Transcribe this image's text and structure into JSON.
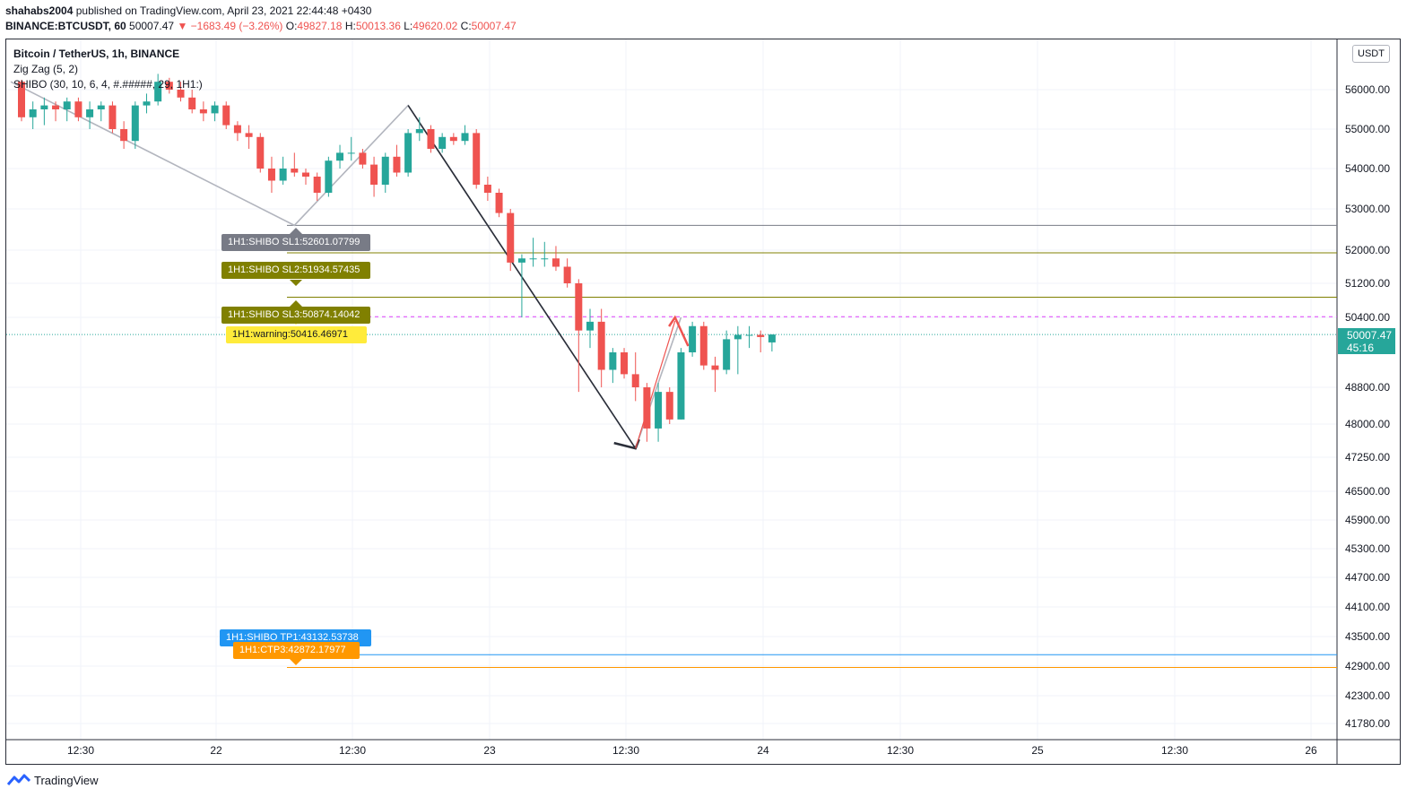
{
  "header": {
    "publisher": "shahabs2004",
    "published_text": "published on TradingView.com, April 23, 2021 22:44:48 +0430",
    "symbol": "BINANCE:BTCUSDT, 60",
    "last": "50007.47",
    "change": "▼ −1683.49 (−3.26%)",
    "o_label": "O:",
    "o_value": "49827.18",
    "h_label": "H:",
    "h_value": "50013.36",
    "l_label": "L:",
    "l_value": "49620.02",
    "c_label": "C:",
    "c_value": "50007.47"
  },
  "legend": {
    "title": "Bitcoin / TetherUS, 1h, BINANCE",
    "indicator1": "Zig Zag (5, 2)",
    "indicator2": "SHIBO (30, 10, 6, 4, #.#####, 29, 1H1:)"
  },
  "currency_button": "USDT",
  "price_tag": {
    "price": "50007.47",
    "countdown": "45:16"
  },
  "footer": {
    "brand": "TradingView"
  },
  "colors": {
    "up": "#26a69a",
    "down": "#ef5350",
    "sl1": "#787b86",
    "sl2": "#808000",
    "warning": "#ffeb3b",
    "tp1": "#2196f3",
    "ctp3": "#ff9800",
    "warn_line": "#e040fb"
  },
  "chart_data": {
    "type": "candlestick",
    "title": "Bitcoin / TetherUS, 1h, BINANCE",
    "xlabel": "",
    "ylabel": "",
    "y_axis_ticks": [
      "56000.00",
      "55000.00",
      "54000.00",
      "53000.00",
      "52000.00",
      "51200.00",
      "50400.00",
      "48800.00",
      "48000.00",
      "47250.00",
      "46500.00",
      "45900.00",
      "45300.00",
      "44700.00",
      "44100.00",
      "43500.00",
      "42900.00",
      "42300.00",
      "41780.00"
    ],
    "x_axis_ticks": [
      "12:30",
      "22",
      "12:30",
      "23",
      "12:30",
      "24",
      "12:30",
      "25",
      "12:30",
      "26"
    ],
    "candles": [
      {
        "o": 56200,
        "h": 56250,
        "l": 55200,
        "c": 55300
      },
      {
        "o": 55300,
        "h": 55700,
        "l": 55000,
        "c": 55500
      },
      {
        "o": 55500,
        "h": 55800,
        "l": 55100,
        "c": 55600
      },
      {
        "o": 55600,
        "h": 55700,
        "l": 55200,
        "c": 55500
      },
      {
        "o": 55500,
        "h": 55800,
        "l": 55200,
        "c": 55700
      },
      {
        "o": 55700,
        "h": 55800,
        "l": 55200,
        "c": 55300
      },
      {
        "o": 55300,
        "h": 55700,
        "l": 55000,
        "c": 55500
      },
      {
        "o": 55500,
        "h": 55700,
        "l": 55200,
        "c": 55600
      },
      {
        "o": 55600,
        "h": 55700,
        "l": 54900,
        "c": 55000
      },
      {
        "o": 55000,
        "h": 55200,
        "l": 54500,
        "c": 54700
      },
      {
        "o": 54700,
        "h": 55700,
        "l": 54500,
        "c": 55600
      },
      {
        "o": 55600,
        "h": 55900,
        "l": 55400,
        "c": 55700
      },
      {
        "o": 55700,
        "h": 56400,
        "l": 55600,
        "c": 56200
      },
      {
        "o": 56200,
        "h": 56300,
        "l": 55900,
        "c": 56000
      },
      {
        "o": 56000,
        "h": 56200,
        "l": 55700,
        "c": 55800
      },
      {
        "o": 55800,
        "h": 56000,
        "l": 55400,
        "c": 55500
      },
      {
        "o": 55500,
        "h": 55700,
        "l": 55200,
        "c": 55400
      },
      {
        "o": 55400,
        "h": 55700,
        "l": 55200,
        "c": 55600
      },
      {
        "o": 55600,
        "h": 55700,
        "l": 55000,
        "c": 55100
      },
      {
        "o": 55100,
        "h": 55200,
        "l": 54700,
        "c": 54900
      },
      {
        "o": 54900,
        "h": 55100,
        "l": 54500,
        "c": 54800
      },
      {
        "o": 54800,
        "h": 54900,
        "l": 53900,
        "c": 54000
      },
      {
        "o": 54000,
        "h": 54300,
        "l": 53400,
        "c": 53700
      },
      {
        "o": 53700,
        "h": 54300,
        "l": 53600,
        "c": 54000
      },
      {
        "o": 54000,
        "h": 54400,
        "l": 53800,
        "c": 53900
      },
      {
        "o": 53900,
        "h": 54000,
        "l": 53600,
        "c": 53800
      },
      {
        "o": 53800,
        "h": 53900,
        "l": 53200,
        "c": 53400
      },
      {
        "o": 53400,
        "h": 54300,
        "l": 53300,
        "c": 54200
      },
      {
        "o": 54200,
        "h": 54600,
        "l": 54000,
        "c": 54400
      },
      {
        "o": 54400,
        "h": 54800,
        "l": 54200,
        "c": 54400
      },
      {
        "o": 54400,
        "h": 54500,
        "l": 54000,
        "c": 54100
      },
      {
        "o": 54100,
        "h": 54300,
        "l": 53300,
        "c": 53600
      },
      {
        "o": 53600,
        "h": 54400,
        "l": 53400,
        "c": 54300
      },
      {
        "o": 54300,
        "h": 54600,
        "l": 53800,
        "c": 53900
      },
      {
        "o": 53900,
        "h": 55000,
        "l": 53800,
        "c": 54900
      },
      {
        "o": 54900,
        "h": 55300,
        "l": 54700,
        "c": 55000
      },
      {
        "o": 55000,
        "h": 55100,
        "l": 54400,
        "c": 54500
      },
      {
        "o": 54500,
        "h": 54900,
        "l": 54400,
        "c": 54800
      },
      {
        "o": 54800,
        "h": 54900,
        "l": 54600,
        "c": 54700
      },
      {
        "o": 54700,
        "h": 55100,
        "l": 54600,
        "c": 54900
      },
      {
        "o": 54900,
        "h": 55000,
        "l": 53500,
        "c": 53600
      },
      {
        "o": 53600,
        "h": 53800,
        "l": 53200,
        "c": 53400
      },
      {
        "o": 53400,
        "h": 53500,
        "l": 52800,
        "c": 52900
      },
      {
        "o": 52900,
        "h": 53000,
        "l": 51500,
        "c": 51700
      },
      {
        "o": 51700,
        "h": 51900,
        "l": 50400,
        "c": 51800
      },
      {
        "o": 51800,
        "h": 52300,
        "l": 51600,
        "c": 51800
      },
      {
        "o": 51800,
        "h": 52200,
        "l": 51600,
        "c": 51800
      },
      {
        "o": 51800,
        "h": 52100,
        "l": 51500,
        "c": 51600
      },
      {
        "o": 51600,
        "h": 51800,
        "l": 51100,
        "c": 51200
      },
      {
        "o": 51200,
        "h": 51300,
        "l": 48700,
        "c": 50100
      },
      {
        "o": 50100,
        "h": 50600,
        "l": 49700,
        "c": 50300
      },
      {
        "o": 50300,
        "h": 50600,
        "l": 48800,
        "c": 49200
      },
      {
        "o": 49200,
        "h": 49700,
        "l": 48900,
        "c": 49600
      },
      {
        "o": 49600,
        "h": 49700,
        "l": 49000,
        "c": 49100
      },
      {
        "o": 49100,
        "h": 49600,
        "l": 48500,
        "c": 48800
      },
      {
        "o": 48800,
        "h": 48900,
        "l": 47600,
        "c": 47900
      },
      {
        "o": 47900,
        "h": 48900,
        "l": 47600,
        "c": 48700
      },
      {
        "o": 48700,
        "h": 48800,
        "l": 48000,
        "c": 48100
      },
      {
        "o": 48100,
        "h": 49700,
        "l": 48100,
        "c": 49600
      },
      {
        "o": 49600,
        "h": 50300,
        "l": 49500,
        "c": 50200
      },
      {
        "o": 50200,
        "h": 50300,
        "l": 49200,
        "c": 49300
      },
      {
        "o": 49300,
        "h": 49500,
        "l": 48700,
        "c": 49200
      },
      {
        "o": 49200,
        "h": 50100,
        "l": 49100,
        "c": 49900
      },
      {
        "o": 49900,
        "h": 50200,
        "l": 49100,
        "c": 50000
      },
      {
        "o": 50000,
        "h": 50200,
        "l": 49700,
        "c": 50000
      },
      {
        "o": 50000,
        "h": 50100,
        "l": 49600,
        "c": 49950
      },
      {
        "o": 49827.18,
        "h": 50013.36,
        "l": 49620.02,
        "c": 50007.47
      }
    ],
    "zigzag": [
      56200,
      52601.08,
      55600,
      47450,
      50400
    ],
    "levels": [
      {
        "label": "1H1:SHIBO SL1:52601.07799",
        "value": 52601.07799
      },
      {
        "label": "1H1:SHIBO SL2:51934.57435",
        "value": 51934.57435
      },
      {
        "label": "1H1:SHIBO SL3:50874.14042",
        "value": 50874.14042
      },
      {
        "label": "1H1:warning:50416.46971",
        "value": 50416.46971
      },
      {
        "label": "1H1:SHIBO TP1:43132.53738",
        "value": 43132.53738
      },
      {
        "label": "1H1:CTP3:42872.17977",
        "value": 42872.17977
      }
    ],
    "current_price": 50007.47,
    "grid": true
  }
}
